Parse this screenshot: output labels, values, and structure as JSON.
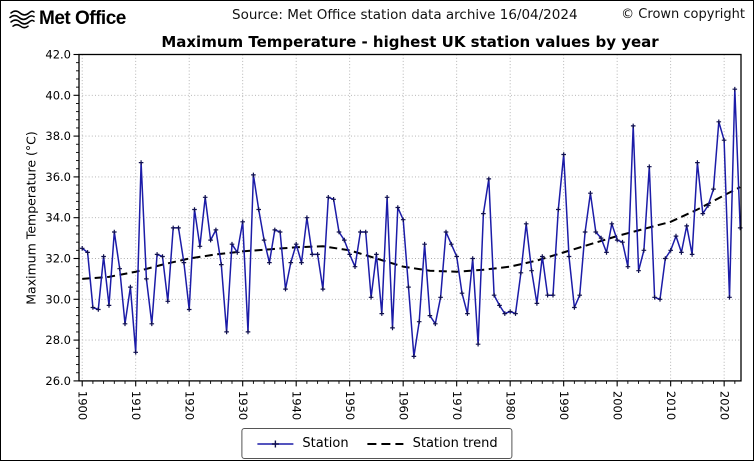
{
  "header": {
    "logo_text": "Met Office",
    "source": "Source: Met Office station data archive 16/04/2024",
    "copyright": "© Crown copyright"
  },
  "chart": {
    "title": "Maximum Temperature - highest UK station values by year",
    "ylabel": "Maximum Temperature (°C)",
    "legend": {
      "station_label": "Station",
      "trend_label": "Station trend"
    }
  },
  "colors": {
    "station_line": "#1c1ca8",
    "station_marker": "#10104f",
    "trend_line": "#000000",
    "grid": "#adadad",
    "spine": "#000000"
  },
  "chart_data": {
    "type": "line",
    "title": "Maximum Temperature - highest UK station values by year",
    "xlabel": "",
    "ylabel": "Maximum Temperature (°C)",
    "xlim": [
      1899.4,
      2023.15
    ],
    "ylim": [
      26.0,
      42.0
    ],
    "xticks": [
      1900,
      1910,
      1920,
      1930,
      1940,
      1950,
      1960,
      1970,
      1980,
      1990,
      2000,
      2010,
      2020
    ],
    "yticks": [
      26.0,
      28.0,
      30.0,
      32.0,
      34.0,
      36.0,
      38.0,
      40.0,
      42.0
    ],
    "x_minor_step": 2,
    "y_minor_step": 0.4,
    "grid": "dotted gridlines at major ticks, both axes",
    "legend_position": "bottom center, outside axes",
    "series": [
      {
        "name": "Station",
        "style": "solid line with + markers",
        "x_start": 1900,
        "x_step": 1,
        "values": [
          32.5,
          32.3,
          29.6,
          29.5,
          32.1,
          29.7,
          33.3,
          31.5,
          28.8,
          30.6,
          27.4,
          36.7,
          31.0,
          28.8,
          32.2,
          32.1,
          29.9,
          33.5,
          33.5,
          31.8,
          29.5,
          34.4,
          32.6,
          35.0,
          32.9,
          33.4,
          31.7,
          28.4,
          32.7,
          32.3,
          33.8,
          28.4,
          36.1,
          34.4,
          32.9,
          31.8,
          33.4,
          33.3,
          30.5,
          31.8,
          32.7,
          31.8,
          34.0,
          32.2,
          32.2,
          30.5,
          35.0,
          34.9,
          33.3,
          32.9,
          32.2,
          31.6,
          33.3,
          33.3,
          30.1,
          32.2,
          29.3,
          35.0,
          28.6,
          34.5,
          33.9,
          30.6,
          27.2,
          28.9,
          32.7,
          29.2,
          28.8,
          30.1,
          33.3,
          32.7,
          32.1,
          30.3,
          29.3,
          32.0,
          27.8,
          34.2,
          35.9,
          30.2,
          29.7,
          29.3,
          29.4,
          29.3,
          31.3,
          33.7,
          31.4,
          29.8,
          32.1,
          30.2,
          30.2,
          34.4,
          37.1,
          32.1,
          29.6,
          30.2,
          33.3,
          35.2,
          33.3,
          33.0,
          32.3,
          33.7,
          32.9,
          32.8,
          31.6,
          38.5,
          31.4,
          32.4,
          36.5,
          30.1,
          30.0,
          32.0,
          32.4,
          33.1,
          32.3,
          33.6,
          32.2,
          36.7,
          34.2,
          34.6,
          35.4,
          38.7,
          37.8,
          30.1,
          40.3,
          33.5
        ]
      },
      {
        "name": "Station trend",
        "style": "dashed",
        "x": [
          1900,
          1905,
          1910,
          1915,
          1920,
          1925,
          1930,
          1935,
          1940,
          1945,
          1950,
          1955,
          1960,
          1965,
          1970,
          1975,
          1980,
          1985,
          1990,
          1995,
          2000,
          2005,
          2010,
          2015,
          2020,
          2023
        ],
        "values": [
          31.0,
          31.1,
          31.35,
          31.7,
          32.0,
          32.2,
          32.35,
          32.45,
          32.55,
          32.6,
          32.4,
          32.0,
          31.6,
          31.4,
          31.35,
          31.45,
          31.6,
          31.9,
          32.3,
          32.7,
          33.1,
          33.45,
          33.8,
          34.4,
          35.1,
          35.5
        ]
      }
    ]
  }
}
